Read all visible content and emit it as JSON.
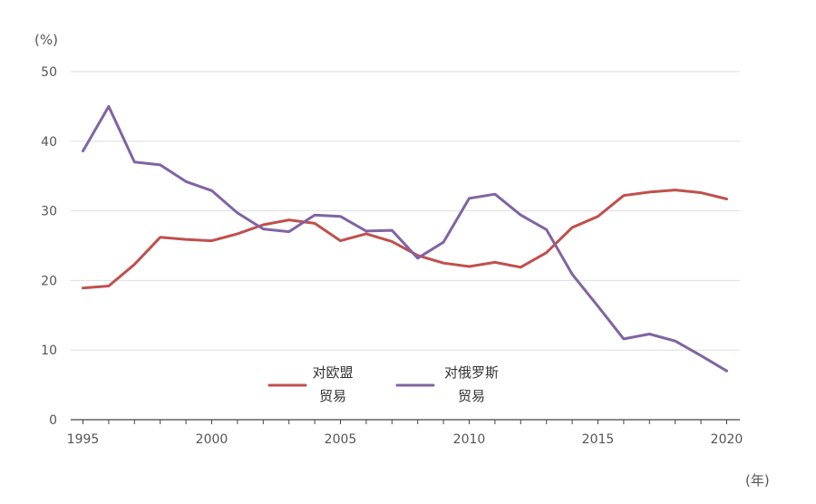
{
  "chart_data": {
    "type": "line",
    "title": "",
    "ylabel": "(%)",
    "xlabel": "(年)",
    "ylim": [
      0,
      50
    ],
    "xlim": [
      1995,
      2020
    ],
    "yticks": [
      0,
      10,
      20,
      30,
      40,
      50
    ],
    "xticks": [
      1995,
      2000,
      2005,
      2010,
      2015,
      2020
    ],
    "grid": true,
    "legend_position": "center-bottom",
    "x": [
      1995,
      1996,
      1997,
      1998,
      1999,
      2000,
      2001,
      2002,
      2003,
      2004,
      2005,
      2006,
      2007,
      2008,
      2009,
      2010,
      2011,
      2012,
      2013,
      2014,
      2015,
      2016,
      2017,
      2018,
      2019,
      2020
    ],
    "series": [
      {
        "name": "对欧盟贸易",
        "legend_lines": [
          "对欧盟",
          "贸易"
        ],
        "color": "#c0504d",
        "values": [
          18.9,
          19.2,
          22.3,
          26.2,
          25.9,
          25.7,
          26.7,
          28.0,
          28.7,
          28.2,
          25.7,
          26.7,
          25.6,
          23.6,
          22.5,
          22.0,
          22.6,
          21.9,
          24.0,
          27.6,
          29.2,
          32.2,
          32.7,
          33.0,
          32.6,
          31.7
        ]
      },
      {
        "name": "对俄罗斯贸易",
        "legend_lines": [
          "对俄罗斯",
          "贸易"
        ],
        "color": "#8064a2",
        "values": [
          38.6,
          45.0,
          37.0,
          36.6,
          34.2,
          32.9,
          29.7,
          27.4,
          27.0,
          29.4,
          29.2,
          27.1,
          27.2,
          23.2,
          25.5,
          31.8,
          32.4,
          29.4,
          27.3,
          20.9,
          16.3,
          11.6,
          12.3,
          11.3,
          9.2,
          7.0
        ]
      }
    ]
  }
}
